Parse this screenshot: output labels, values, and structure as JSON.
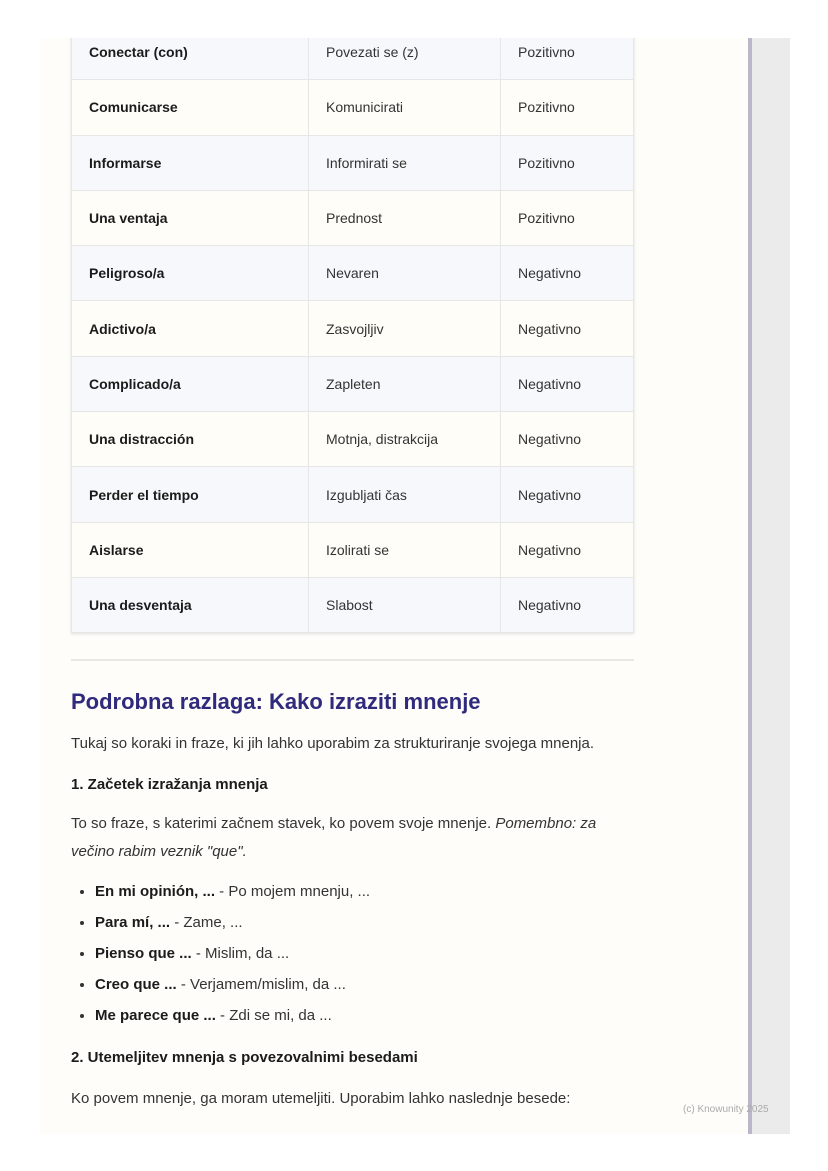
{
  "table": {
    "rows": [
      [
        "Conectar (con)",
        "Povezati se (z)",
        "Pozitivno"
      ],
      [
        "Comunicarse",
        "Komunicirati",
        "Pozitivno"
      ],
      [
        "Informarse",
        "Informirati se",
        "Pozitivno"
      ],
      [
        "Una ventaja",
        "Prednost",
        "Pozitivno"
      ],
      [
        "Peligroso/a",
        "Nevaren",
        "Negativno"
      ],
      [
        "Adictivo/a",
        "Zasvojljiv",
        "Negativno"
      ],
      [
        "Complicado/a",
        "Zapleten",
        "Negativno"
      ],
      [
        "Una distracción",
        "Motnja, distrakcija",
        "Negativno"
      ],
      [
        "Perder el tiempo",
        "Izgubljati čas",
        "Negativno"
      ],
      [
        "Aislarse",
        "Izolirati se",
        "Negativno"
      ],
      [
        "Una desventaja",
        "Slabost",
        "Negativno"
      ]
    ]
  },
  "section": {
    "title": "Podrobna razlaga: Kako izraziti mnenje",
    "intro": "Tukaj so koraki in fraze, ki jih lahko uporabim za strukturiranje svojega mnenja.",
    "step1": {
      "title": "1. Začetek izražanja mnenja",
      "text": "To so fraze, s katerimi začnem stavek, ko povem svoje mnenje. ",
      "note": "Pomembno: za večino rabim veznik \"que\".",
      "items": [
        {
          "es": "En mi opinión, ...",
          "sl": " - Po mojem mnenju, ..."
        },
        {
          "es": "Para mí, ...",
          "sl": " - Zame, ..."
        },
        {
          "es": "Pienso que ...",
          "sl": " - Mislim, da ..."
        },
        {
          "es": "Creo que ...",
          "sl": " - Verjamem/mislim, da ..."
        },
        {
          "es": "Me parece que ...",
          "sl": " - Zdi se mi, da ..."
        }
      ]
    },
    "step2": {
      "title": "2. Utemeljitev mnenja s povezovalnimi besedami",
      "text": "Ko povem mnenje, ga moram utemeljiti. Uporabim lahko naslednje besede:"
    }
  },
  "footer": "(c) Knowunity 2025",
  "colors": {
    "heading": "#2f2a7c",
    "background": "#fefdf9"
  }
}
